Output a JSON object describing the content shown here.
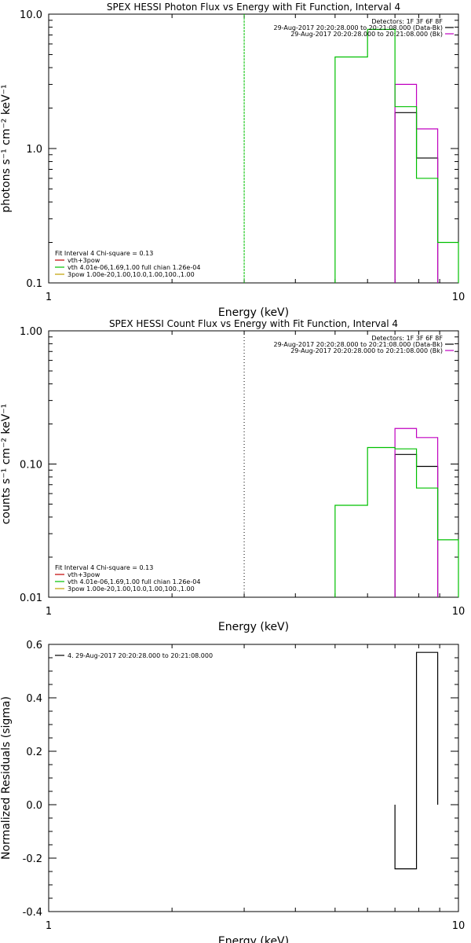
{
  "chart_data": [
    {
      "type": "line",
      "title": "SPEX HESSI Photon Flux vs Energy with Fit Function, Interval 4",
      "xlabel": "Energy (keV)",
      "ylabel": "photons s⁻¹ cm⁻² keV⁻¹",
      "xscale": "log",
      "yscale": "log",
      "xlim": [
        1,
        10
      ],
      "ylim": [
        0.1,
        10
      ],
      "xticks": [
        "1",
        "10"
      ],
      "yticks": [
        "0.1",
        "1.0",
        "10.0"
      ],
      "legend_top_right": [
        {
          "label": "Detectors: 1F 3F 6F 8F",
          "color": "#000000",
          "marker": false
        },
        {
          "label": "29-Aug-2017 20:20:28.000 to 20:21:08.000 (Data-Bk)",
          "color": "#000000",
          "marker": true
        },
        {
          "label": "29-Aug-2017 20:20:28.000 to 20:21:08.000 (Bk)",
          "color": "#c000c0",
          "marker": true
        }
      ],
      "legend_bottom_left": [
        {
          "label": "Fit Interval 4   Chi-square = 0.13",
          "color": "#000000",
          "marker": false
        },
        {
          "label": "vth+3pow",
          "color": "#c00000",
          "marker": true
        },
        {
          "label": "vth 4.01e-06,1.69,1.00  full chian 1.26e-04",
          "color": "#00c000",
          "marker": true
        },
        {
          "label": "3pow 1.00e-20,1.00,10.0,1.00,100.,1.00",
          "color": "#c0a000",
          "marker": true
        }
      ],
      "vline": {
        "x": 3.0,
        "color": "#00c000",
        "style": "dashed"
      },
      "series": [
        {
          "color": "#000000",
          "edges": [
            7.0,
            7.9,
            8.9
          ],
          "values": [
            1.85,
            0.85
          ]
        },
        {
          "color": "#c000c0",
          "edges": [
            7.0,
            7.9,
            8.9
          ],
          "values": [
            3.0,
            1.4
          ]
        },
        {
          "color": "#00c000",
          "edges": [
            5.0,
            6.0,
            7.0,
            7.9,
            8.9,
            10.0
          ],
          "values": [
            4.8,
            7.7,
            2.05,
            0.6,
            0.2
          ]
        }
      ]
    },
    {
      "type": "line",
      "title": "SPEX HESSI Count Flux vs Energy with Fit Function, Interval 4",
      "xlabel": "Energy (keV)",
      "ylabel": "counts s⁻¹ cm⁻² keV⁻¹",
      "xscale": "log",
      "yscale": "log",
      "xlim": [
        1,
        10
      ],
      "ylim": [
        0.01,
        1
      ],
      "xticks": [
        "1",
        "10"
      ],
      "yticks": [
        "0.01",
        "0.10",
        "1.00"
      ],
      "legend_top_right": [
        {
          "label": "Detectors: 1F 3F 6F 8F",
          "color": "#000000",
          "marker": false
        },
        {
          "label": "29-Aug-2017 20:20:28.000 to 20:21:08.000 (Data-Bk)",
          "color": "#000000",
          "marker": true
        },
        {
          "label": "29-Aug-2017 20:20:28.000 to 20:21:08.000 (Bk)",
          "color": "#c000c0",
          "marker": true
        }
      ],
      "legend_bottom_left": [
        {
          "label": "Fit Interval 4   Chi-square = 0.13",
          "color": "#000000",
          "marker": false
        },
        {
          "label": "vth+3pow",
          "color": "#c00000",
          "marker": true
        },
        {
          "label": "vth 4.01e-06,1.69,1.00  full chian 1.26e-04",
          "color": "#00c000",
          "marker": true
        },
        {
          "label": "3pow 1.00e-20,1.00,10.0,1.00,100.,1.00",
          "color": "#c0a000",
          "marker": true
        }
      ],
      "vline": {
        "x": 3.0,
        "color": "#000000",
        "style": "dotted"
      },
      "series": [
        {
          "color": "#000000",
          "edges": [
            7.0,
            7.9,
            8.9
          ],
          "values": [
            0.118,
            0.096
          ]
        },
        {
          "color": "#c000c0",
          "edges": [
            7.0,
            7.9,
            8.9
          ],
          "values": [
            0.185,
            0.158
          ]
        },
        {
          "color": "#00c000",
          "edges": [
            5.0,
            6.0,
            7.0,
            7.9,
            8.9,
            10.0
          ],
          "values": [
            0.049,
            0.133,
            0.13,
            0.066,
            0.027
          ]
        }
      ]
    },
    {
      "type": "line",
      "title": "",
      "xlabel": "Energy (keV)",
      "ylabel": "Normalized Residuals (sigma)",
      "xscale": "log",
      "yscale": "linear",
      "xlim": [
        1,
        10
      ],
      "ylim": [
        -0.4,
        0.6
      ],
      "xticks": [
        "1",
        "10"
      ],
      "yticks": [
        "-0.4",
        "-0.2",
        "0.0",
        "0.2",
        "0.4",
        "0.6"
      ],
      "legend_top_left": [
        {
          "label": "4. 29-Aug-2017 20:20:28.000 to 20:21:08.000",
          "color": "#000000",
          "marker": true
        }
      ],
      "series": [
        {
          "color": "#000000",
          "edges": [
            7.0,
            7.9,
            8.9
          ],
          "values": [
            -0.24,
            0.57
          ]
        }
      ]
    }
  ]
}
